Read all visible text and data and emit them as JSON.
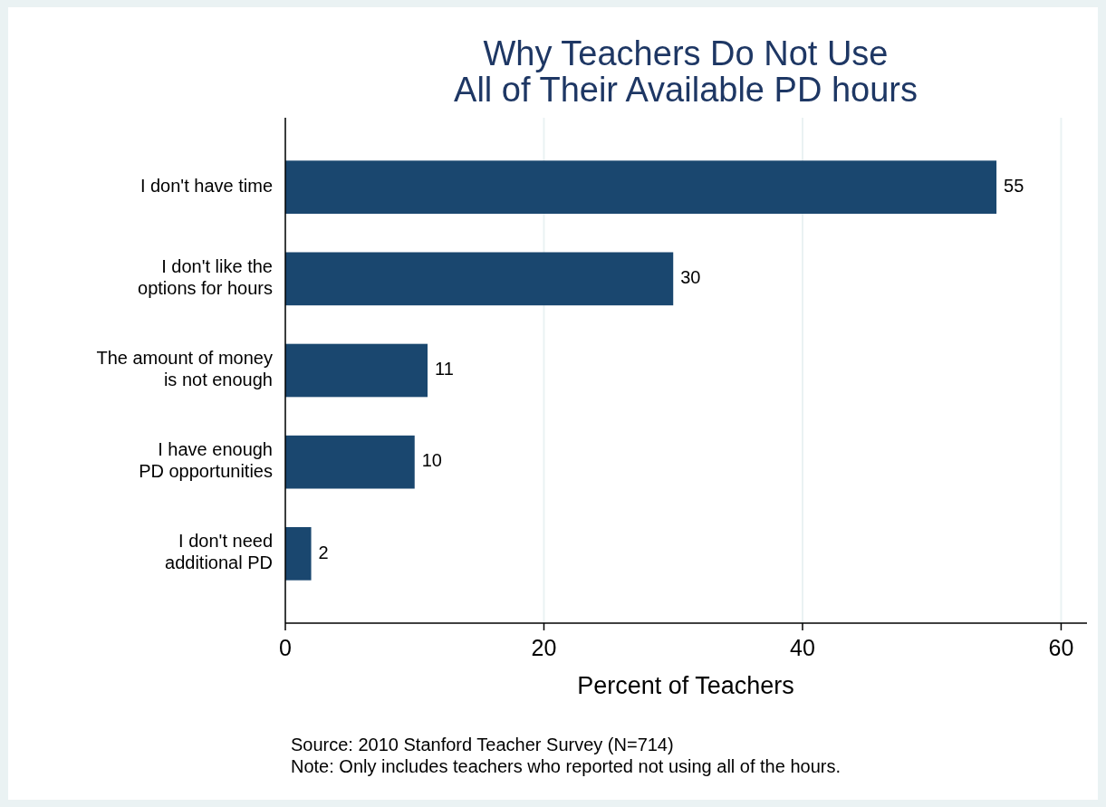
{
  "chart_data": {
    "type": "bar",
    "orientation": "horizontal",
    "title": "Why Teachers Do Not Use\nAll of Their Available PD hours",
    "xlabel": "Percent of Teachers",
    "categories": [
      "I don't have time",
      "I don't like the\noptions for hours",
      "The amount of money\nis not enough",
      "I have enough\nPD opportunities",
      "I don't need\nadditional PD"
    ],
    "values": [
      55,
      30,
      11,
      10,
      2
    ],
    "color": "#1a476f",
    "data_labels": true,
    "xlim": [
      0,
      62
    ],
    "xticks": [
      0,
      20,
      40,
      60
    ],
    "grid": "x",
    "annotations": [
      "Source: 2010 Stanford Teacher Survey (N=714)",
      "Note: Only includes teachers who reported not using all of the hours."
    ]
  }
}
